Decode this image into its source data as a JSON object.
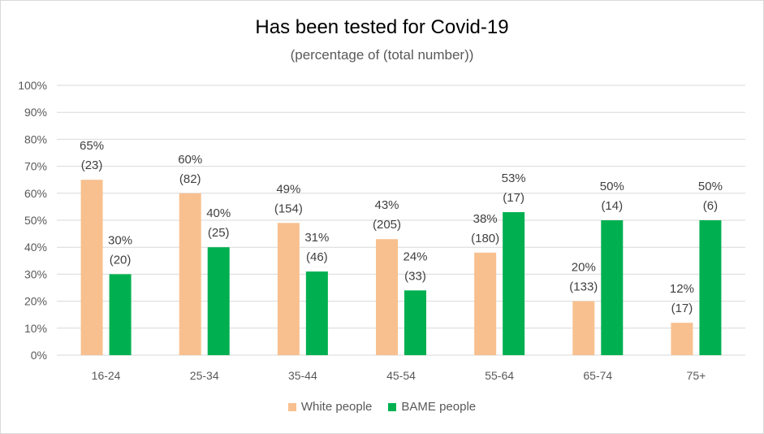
{
  "chart_data": {
    "type": "bar",
    "title": "Has been tested for Covid-19",
    "subtitle": "(percentage of (total number))",
    "categories": [
      "16-24",
      "25-34",
      "35-44",
      "45-54",
      "55-64",
      "65-74",
      "75+"
    ],
    "yticks": [
      "0%",
      "10%",
      "20%",
      "30%",
      "40%",
      "50%",
      "60%",
      "70%",
      "80%",
      "90%",
      "100%"
    ],
    "ylim": [
      0,
      100
    ],
    "grid": true,
    "legend_position": "bottom",
    "series": [
      {
        "name": "White people",
        "color": "#f8c08f",
        "values": [
          65,
          60,
          49,
          43,
          38,
          20,
          12
        ],
        "labels": [
          "65%",
          "60%",
          "49%",
          "43%",
          "38%",
          "20%",
          "12%"
        ],
        "counts": [
          "(23)",
          "(82)",
          "(154)",
          "(205)",
          "(180)",
          "(133)",
          "(17)"
        ]
      },
      {
        "name": "BAME people",
        "color": "#00b050",
        "values": [
          30,
          40,
          31,
          24,
          53,
          50,
          50
        ],
        "labels": [
          "30%",
          "40%",
          "31%",
          "24%",
          "53%",
          "50%",
          "50%"
        ],
        "counts": [
          "(20)",
          "(25)",
          "(46)",
          "(33)",
          "(17)",
          "(14)",
          "(6)"
        ]
      }
    ]
  }
}
